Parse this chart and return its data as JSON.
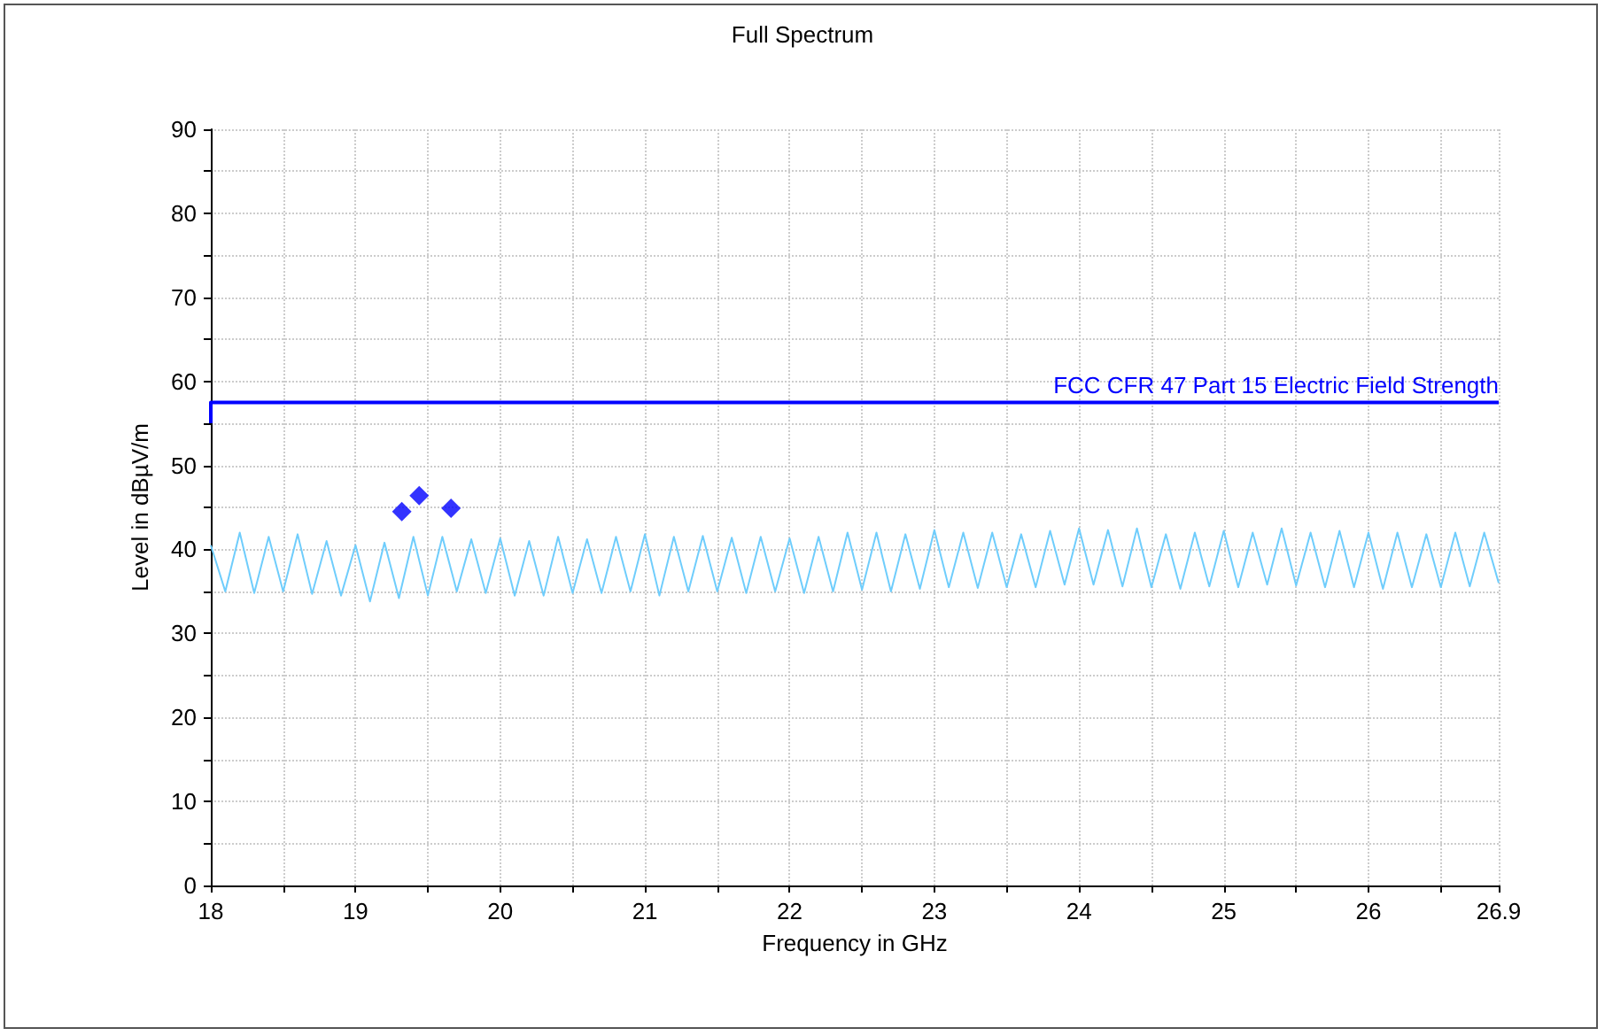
{
  "chart_data": {
    "type": "line",
    "title": "Full Spectrum",
    "xlabel": "Frequency in GHz",
    "ylabel": "Level in dBµV/m",
    "xlim": [
      18,
      26.9
    ],
    "ylim": [
      0,
      90
    ],
    "xticks": [
      18,
      {
        "value": 18.5,
        "label": null
      },
      19,
      {
        "value": 19.5,
        "label": null
      },
      20,
      {
        "value": 20.5,
        "label": null
      },
      21,
      {
        "value": 21.5,
        "label": null
      },
      22,
      {
        "value": 22.5,
        "label": null
      },
      23,
      {
        "value": 23.5,
        "label": null
      },
      24,
      {
        "value": 24.5,
        "label": null
      },
      25,
      {
        "value": 25.5,
        "label": null
      },
      26,
      {
        "value": 26.5,
        "label": null
      },
      26.9
    ],
    "yticks": [
      0,
      {
        "value": 5,
        "label": null
      },
      10,
      {
        "value": 15,
        "label": null
      },
      20,
      {
        "value": 25,
        "label": null
      },
      30,
      {
        "value": 35,
        "label": null
      },
      40,
      {
        "value": 45,
        "label": null
      },
      50,
      {
        "value": 55,
        "label": null
      },
      60,
      {
        "value": 65,
        "label": null
      },
      70,
      {
        "value": 75,
        "label": null
      },
      80,
      {
        "value": 85,
        "label": null
      },
      90
    ],
    "grid": true,
    "series": [
      {
        "color": "#6fcdfc",
        "marker": "none",
        "x": [
          18.0,
          18.1,
          18.2,
          18.3,
          18.4,
          18.5,
          18.6,
          18.7,
          18.8,
          18.9,
          19.0,
          19.1,
          19.2,
          19.3,
          19.4,
          19.5,
          19.6,
          19.7,
          19.8,
          19.9,
          20.0,
          20.1,
          20.2,
          20.3,
          20.4,
          20.5,
          20.6,
          20.7,
          20.8,
          20.9,
          21.0,
          21.1,
          21.2,
          21.3,
          21.4,
          21.5,
          21.6,
          21.7,
          21.8,
          21.9,
          22.0,
          22.1,
          22.2,
          22.3,
          22.4,
          22.5,
          22.6,
          22.7,
          22.8,
          22.9,
          23.0,
          23.1,
          23.2,
          23.3,
          23.4,
          23.5,
          23.6,
          23.7,
          23.8,
          23.9,
          24.0,
          24.1,
          24.2,
          24.3,
          24.4,
          24.5,
          24.6,
          24.7,
          24.8,
          24.9,
          25.0,
          25.1,
          25.2,
          25.3,
          25.4,
          25.5,
          25.6,
          25.7,
          25.8,
          25.9,
          26.0,
          26.1,
          26.2,
          26.3,
          26.4,
          26.5,
          26.6,
          26.7,
          26.8,
          26.9
        ],
        "values": [
          40.5,
          35,
          42,
          34.8,
          41.5,
          35,
          41.8,
          34.7,
          41,
          34.5,
          40.5,
          33.8,
          40.8,
          34.2,
          41.5,
          34.5,
          41.5,
          35,
          41.2,
          34.8,
          41.3,
          34.5,
          41,
          34.5,
          41.5,
          34.8,
          41.2,
          34.8,
          41.5,
          35,
          41.8,
          34.5,
          41.5,
          35,
          41.6,
          35,
          41.4,
          34.8,
          41.5,
          35,
          41.3,
          34.8,
          41.5,
          35,
          42,
          35.2,
          42,
          35,
          41.8,
          35.3,
          42.3,
          35.5,
          42,
          35.4,
          42,
          35.5,
          41.8,
          35.5,
          42.2,
          35.8,
          42.5,
          35.8,
          42.3,
          35.6,
          42.5,
          35.5,
          41.8,
          35.3,
          42,
          35.6,
          42.2,
          35.5,
          42,
          35.8,
          42.5,
          35.7,
          42,
          35.5,
          42.2,
          35.5,
          42,
          35.3,
          42,
          35.5,
          41.8,
          35.5,
          42,
          35.6,
          42,
          36
        ]
      },
      {
        "name": "FCC CFR 47 Part 15 Electric Field Strength",
        "color": "#0000ff",
        "marker": "none",
        "x": [
          18,
          18,
          26.9
        ],
        "values": [
          55,
          57.5,
          57.5
        ]
      },
      {
        "type": "scatter",
        "color": "#0000ff",
        "marker": "diamond",
        "x": [
          19.32,
          19.44,
          19.66
        ],
        "values": [
          44.5,
          46.4,
          44.9
        ]
      }
    ]
  }
}
